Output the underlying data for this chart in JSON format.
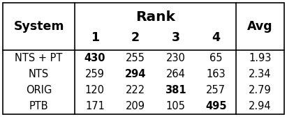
{
  "systems": [
    "NTS + PT",
    "NTS",
    "ORIG",
    "PTB"
  ],
  "rank_cols": [
    "1",
    "2",
    "3",
    "4"
  ],
  "values": [
    [
      430,
      255,
      230,
      65
    ],
    [
      259,
      294,
      264,
      163
    ],
    [
      120,
      222,
      381,
      257
    ],
    [
      171,
      209,
      105,
      495
    ]
  ],
  "avg": [
    "1.93",
    "2.34",
    "2.79",
    "2.94"
  ],
  "bold_indices": [
    [
      0
    ],
    [
      1
    ],
    [
      2
    ],
    [
      3
    ]
  ],
  "header_rank": "Rank",
  "header_system": "System",
  "header_avg": "Avg",
  "bg_color": "#ffffff",
  "text_color": "#000000",
  "font_size": 10.5,
  "header_font_size": 11.5
}
